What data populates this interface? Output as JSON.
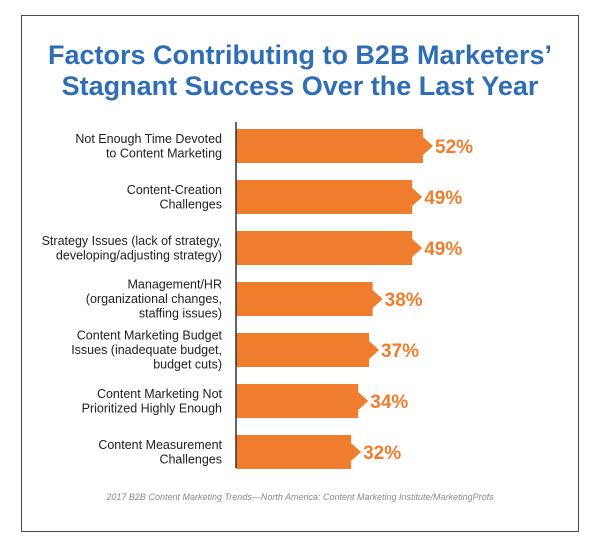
{
  "chart_data": {
    "type": "bar",
    "orientation": "horizontal",
    "title_lines": [
      "Factors Contributing to B2B Marketers’",
      "Stagnant Success Over the Last Year"
    ],
    "categories": [
      [
        "Not Enough Time Devoted",
        "to Content Marketing"
      ],
      [
        "Content-Creation",
        "Challenges"
      ],
      [
        "Strategy Issues (lack of strategy,",
        "developing/adjusting strategy)"
      ],
      [
        "Management/HR",
        "(organizational changes,",
        "staffing issues)"
      ],
      [
        "Content Marketing Budget",
        "Issues (inadequate budget,",
        "budget cuts)"
      ],
      [
        "Content Marketing Not",
        "Prioritized Highly Enough"
      ],
      [
        "Content Measurement",
        "Challenges"
      ]
    ],
    "values": [
      52,
      49,
      49,
      38,
      37,
      34,
      32
    ],
    "value_labels": [
      "52%",
      "49%",
      "49%",
      "38%",
      "37%",
      "34%",
      "32%"
    ],
    "unit": "%",
    "xlim": [
      0,
      52
    ],
    "source": "2017 B2B Content Marketing Trends—North America: Content Marketing Institute/MarketingProfs",
    "colors": {
      "bar": "#ef7d2d",
      "title": "#2f6db5",
      "axis": "#333333"
    }
  }
}
